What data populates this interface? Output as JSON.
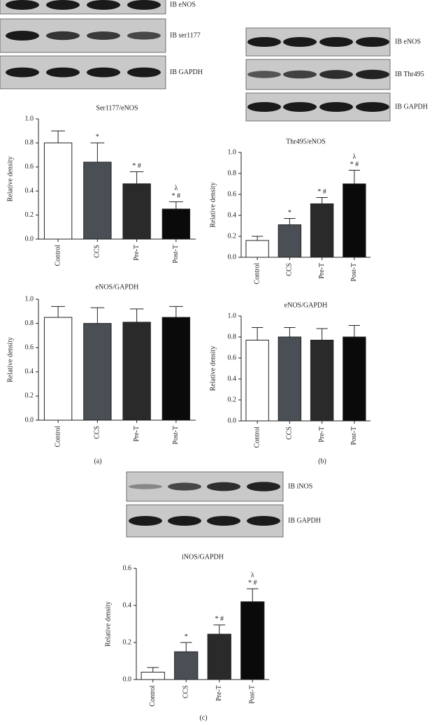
{
  "chart_data": [
    {
      "type": "bar",
      "title": "Ser1177/eNOS",
      "y_label": "Relative density",
      "categories": [
        "Control",
        "CCS",
        "Pre-T",
        "Post-T"
      ],
      "values": [
        0.8,
        0.64,
        0.46,
        0.25
      ],
      "errors": [
        0.1,
        0.16,
        0.1,
        0.06
      ],
      "colors": [
        "#ffffff",
        "#4a4f55",
        "#2a2a2a",
        "#0a0a0a"
      ],
      "annotations": [
        [],
        [
          "*"
        ],
        [
          "* #"
        ],
        [
          "λ",
          "* #"
        ]
      ],
      "ylim": [
        0,
        1
      ],
      "yticks": [
        {
          "value": 0,
          "label": "0.0"
        },
        0.2,
        0.4,
        0.6,
        0.8,
        {
          "value": 1,
          "label": "1.0"
        }
      ]
    },
    {
      "type": "bar",
      "title": "Thr495/eNOS",
      "y_label": "Relative density",
      "categories": [
        "Control",
        "CCS",
        "Pre-T",
        "Post-T"
      ],
      "values": [
        0.16,
        0.31,
        0.51,
        0.7
      ],
      "errors": [
        0.04,
        0.06,
        0.06,
        0.13
      ],
      "colors": [
        "#ffffff",
        "#4a4f55",
        "#2a2a2a",
        "#0a0a0a"
      ],
      "annotations": [
        [],
        [
          "*"
        ],
        [
          "* #"
        ],
        [
          "λ",
          "* #"
        ]
      ],
      "ylim": [
        0,
        1
      ],
      "yticks": [
        {
          "value": 0,
          "label": "0.0"
        },
        0.2,
        0.4,
        0.6,
        0.8,
        {
          "value": 1,
          "label": "1.0"
        }
      ]
    },
    {
      "type": "bar",
      "title": "eNOS/GAPDH",
      "y_label": "Relative density",
      "categories": [
        "Control",
        "CCS",
        "Pre-T",
        "Post-T"
      ],
      "values": [
        0.85,
        0.8,
        0.81,
        0.85
      ],
      "errors": [
        0.09,
        0.13,
        0.11,
        0.09
      ],
      "colors": [
        "#ffffff",
        "#4a4f55",
        "#2a2a2a",
        "#0a0a0a"
      ],
      "annotations": [
        [],
        [],
        [],
        []
      ],
      "ylim": [
        0,
        1
      ],
      "yticks": [
        {
          "value": 0,
          "label": "0.0"
        },
        0.2,
        0.4,
        0.6,
        0.8,
        {
          "value": 1,
          "label": "1.0"
        }
      ]
    },
    {
      "type": "bar",
      "title": "eNOS/GAPDH",
      "y_label": "Relative density",
      "categories": [
        "Control",
        "CCS",
        "Pre-T",
        "Post-T"
      ],
      "values": [
        0.77,
        0.8,
        0.77,
        0.8
      ],
      "errors": [
        0.12,
        0.09,
        0.11,
        0.11
      ],
      "colors": [
        "#ffffff",
        "#4a4f55",
        "#2a2a2a",
        "#0a0a0a"
      ],
      "annotations": [
        [],
        [],
        [],
        []
      ],
      "ylim": [
        0,
        1
      ],
      "yticks": [
        {
          "value": 0,
          "label": "0.0"
        },
        0.2,
        0.4,
        0.6,
        0.8,
        {
          "value": 1,
          "label": "1.0"
        }
      ]
    },
    {
      "type": "bar",
      "title": "iNOS/GAPDH",
      "y_label": "Relative density",
      "categories": [
        "Control",
        "CCS",
        "Pre-T",
        "Post-T"
      ],
      "values": [
        0.04,
        0.15,
        0.245,
        0.42
      ],
      "errors": [
        0.025,
        0.05,
        0.05,
        0.07
      ],
      "colors": [
        "#ffffff",
        "#4a4f55",
        "#2a2a2a",
        "#0a0a0a"
      ],
      "annotations": [
        [],
        [
          "*"
        ],
        [
          "* #"
        ],
        [
          "λ",
          "* #"
        ]
      ],
      "ylim": [
        0,
        0.6
      ],
      "yticks": [
        {
          "value": 0,
          "label": "0.0"
        },
        0.2,
        0.4,
        {
          "value": 0.6,
          "label": "0.6"
        }
      ]
    }
  ],
  "blots": [
    {
      "labels": [
        "IB eNOS",
        "IB ser1177",
        "IB GAPDH"
      ]
    },
    {
      "labels": [
        "IB eNOS",
        "IB Thr495",
        "IB GAPDH"
      ]
    },
    {
      "labels": [
        "IB iNOS",
        "IB GAPDH"
      ]
    }
  ],
  "panel_labels": [
    "(a)",
    "(b)",
    "(c)"
  ]
}
